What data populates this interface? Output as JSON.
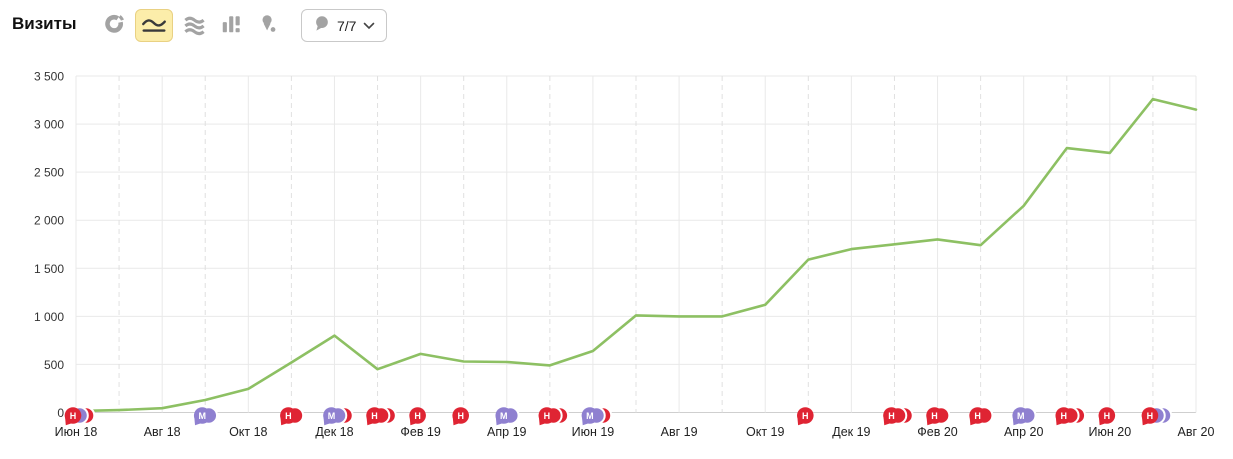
{
  "header": {
    "title": "Визиты",
    "chart_type_buttons": [
      {
        "id": "pie",
        "icon": "pie-chart-icon",
        "selected": false
      },
      {
        "id": "line",
        "icon": "line-chart-icon",
        "selected": true
      },
      {
        "id": "stacked",
        "icon": "stacked-area-icon",
        "selected": false
      },
      {
        "id": "columns",
        "icon": "bar-chart-icon",
        "selected": false
      },
      {
        "id": "map",
        "icon": "map-pin-icon",
        "selected": false
      }
    ],
    "annotations_dropdown": {
      "icon": "comment-bubble-icon",
      "label": "7/7"
    }
  },
  "colors": {
    "series_green": "#8dc063",
    "red": "#df2433",
    "purple": "#8f80d0",
    "grid_solid": "#e9e9e9",
    "grid_dashed": "#e0e0e0",
    "axis_zero_line": "#cfcfcf",
    "selected_btn_bg": "#fcedaa",
    "icon_gray": "#a3a3a3"
  },
  "chart_data": {
    "type": "line",
    "title": "Визиты",
    "x": [
      "Июн 18",
      "Июл 18",
      "Авг 18",
      "Сен 18",
      "Окт 18",
      "Ноя 18",
      "Дек 18",
      "Янв 19",
      "Фев 19",
      "Мар 19",
      "Апр 19",
      "Май 19",
      "Июн 19",
      "Июл 19",
      "Авг 19",
      "Сен 19",
      "Окт 19",
      "Ноя 19",
      "Дек 19",
      "Янв 20",
      "Фев 20",
      "Мар 20",
      "Апр 20",
      "Май 20",
      "Июн 20",
      "Июл 20",
      "Авг 20"
    ],
    "values": [
      15,
      25,
      45,
      130,
      245,
      520,
      800,
      450,
      610,
      530,
      525,
      490,
      640,
      1010,
      1000,
      1000,
      1120,
      1590,
      1700,
      1750,
      1800,
      1740,
      2150,
      2750,
      2700,
      3260,
      3150
    ],
    "x_label_every": 2,
    "ylim": [
      0,
      3500
    ],
    "y_ticks": [
      0,
      500,
      1000,
      1500,
      2000,
      2500,
      3000,
      3500
    ],
    "y_tick_labels": [
      "0",
      "500",
      "1 000",
      "1 500",
      "2 000",
      "2 500",
      "3 000",
      "3 500"
    ],
    "legend": "none",
    "grid": "horizontal solid every 500; vertical solid at labeled months, dashed at unlabeled months",
    "annotations": [
      {
        "month": "Июн 18",
        "index": 0,
        "letter": "Н",
        "bubbles": [
          "red",
          "purple",
          "red"
        ]
      },
      {
        "month": "Сен 18",
        "index": 3,
        "letter": "М",
        "bubbles": [
          "purple",
          "purple"
        ]
      },
      {
        "month": "Ноя 18",
        "index": 5,
        "letter": "Н",
        "bubbles": [
          "red",
          "red"
        ]
      },
      {
        "month": "Дек 18",
        "index": 6,
        "letter": "М",
        "bubbles": [
          "purple",
          "purple",
          "red"
        ]
      },
      {
        "month": "Янв 19",
        "index": 7,
        "letter": "Н",
        "bubbles": [
          "red",
          "red",
          "red"
        ]
      },
      {
        "month": "Фев 19",
        "index": 8,
        "letter": "Н",
        "bubbles": [
          "red"
        ]
      },
      {
        "month": "Мар 19",
        "index": 9,
        "letter": "Н",
        "bubbles": [
          "red"
        ]
      },
      {
        "month": "Апр 19",
        "index": 10,
        "letter": "М",
        "bubbles": [
          "purple",
          "purple"
        ]
      },
      {
        "month": "Май 19",
        "index": 11,
        "letter": "Н",
        "bubbles": [
          "red",
          "red",
          "red"
        ]
      },
      {
        "month": "Июн 19",
        "index": 12,
        "letter": "М",
        "bubbles": [
          "purple",
          "purple",
          "red"
        ]
      },
      {
        "month": "Ноя 19",
        "index": 17,
        "letter": "Н",
        "bubbles": [
          "red"
        ]
      },
      {
        "month": "Янв 20",
        "index": 19,
        "letter": "Н",
        "bubbles": [
          "red",
          "red",
          "red"
        ]
      },
      {
        "month": "Фев 20",
        "index": 20,
        "letter": "Н",
        "bubbles": [
          "red",
          "red"
        ]
      },
      {
        "month": "Мар 20",
        "index": 21,
        "letter": "Н",
        "bubbles": [
          "red",
          "red"
        ]
      },
      {
        "month": "Апр 20",
        "index": 22,
        "letter": "М",
        "bubbles": [
          "purple",
          "purple"
        ]
      },
      {
        "month": "Май 20",
        "index": 23,
        "letter": "Н",
        "bubbles": [
          "red",
          "red",
          "red"
        ]
      },
      {
        "month": "Июн 20",
        "index": 24,
        "letter": "Н",
        "bubbles": [
          "red"
        ]
      },
      {
        "month": "Июл 20",
        "index": 25,
        "letter": "Н",
        "bubbles": [
          "red",
          "purple",
          "purple"
        ]
      }
    ]
  }
}
